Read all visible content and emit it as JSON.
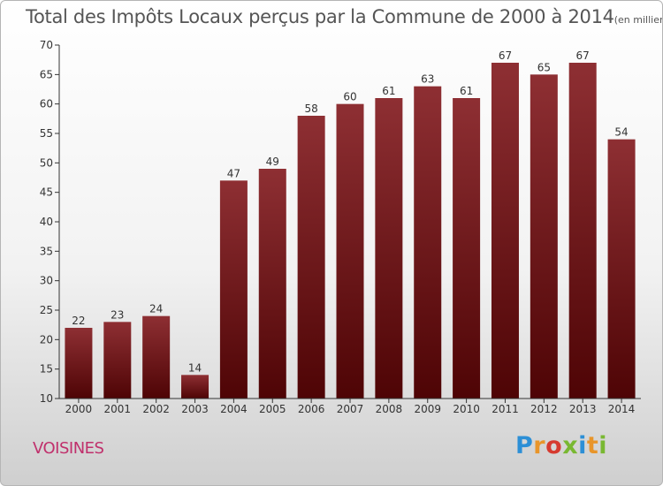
{
  "chart_data": {
    "type": "bar",
    "title": "Total des Impôts Locaux perçus par la Commune de 2000 à 2014",
    "subtitle": "(en milliers d'€)",
    "categories": [
      "2000",
      "2001",
      "2002",
      "2003",
      "2004",
      "2005",
      "2006",
      "2007",
      "2008",
      "2009",
      "2010",
      "2011",
      "2012",
      "2013",
      "2014"
    ],
    "values": [
      22,
      23,
      24,
      14,
      47,
      49,
      58,
      60,
      61,
      63,
      61,
      67,
      65,
      67,
      54
    ],
    "ylim": [
      10,
      70
    ],
    "yticks": [
      10,
      15,
      20,
      25,
      30,
      35,
      40,
      45,
      50,
      55,
      60,
      65,
      70
    ],
    "xlabel": "",
    "ylabel": "",
    "grid": false,
    "bar_color": "#7a1a1d",
    "data_labels": true
  },
  "commune": "VOISINES",
  "brand": "Proxiti",
  "colors": {
    "title": "#555555",
    "commune": "#c0306c"
  }
}
